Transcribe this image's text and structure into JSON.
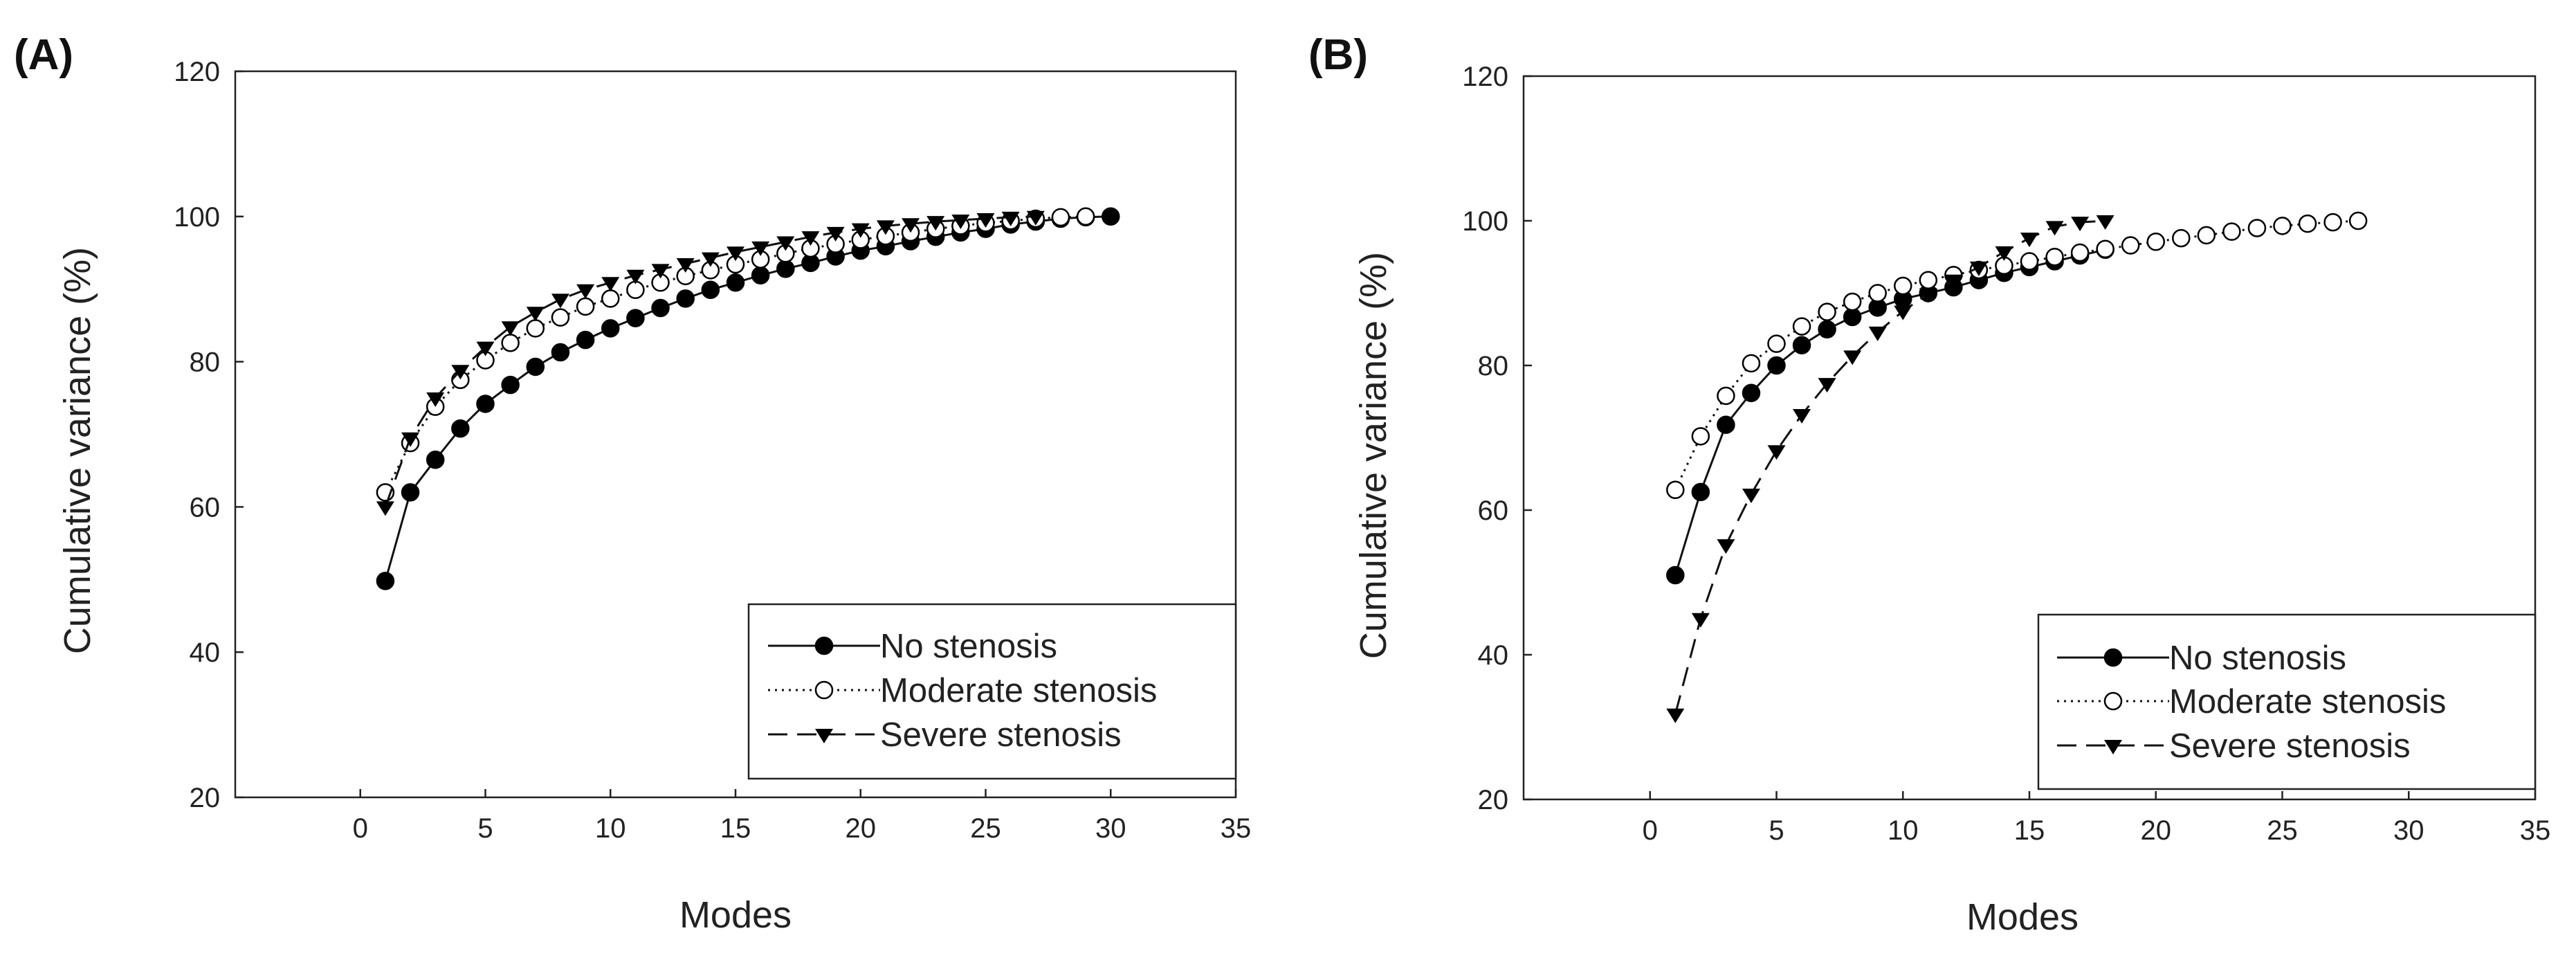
{
  "chart_data": [
    {
      "panel_label": "(A)",
      "type": "line",
      "xlabel": "Modes",
      "ylabel": "Cumulative variance (%)",
      "xlim": [
        -5,
        35
      ],
      "ylim": [
        20,
        120
      ],
      "xticks": [
        0,
        5,
        10,
        15,
        20,
        25,
        30,
        35
      ],
      "yticks": [
        20,
        40,
        60,
        80,
        100,
        120
      ],
      "legend_position": "bottom-right",
      "series": [
        {
          "name": "No stenosis",
          "marker": "filled-circle",
          "line": "solid",
          "x": [
            1,
            2,
            3,
            4,
            5,
            6,
            7,
            8,
            9,
            10,
            11,
            12,
            13,
            14,
            15,
            16,
            17,
            18,
            19,
            20,
            21,
            22,
            23,
            24,
            25,
            26,
            27,
            28,
            29,
            30
          ],
          "y": [
            49.8,
            62.0,
            66.5,
            70.8,
            74.2,
            76.8,
            79.3,
            81.3,
            83.0,
            84.6,
            86.0,
            87.4,
            88.7,
            89.9,
            90.9,
            91.9,
            92.8,
            93.6,
            94.5,
            95.3,
            95.9,
            96.6,
            97.2,
            97.8,
            98.3,
            98.9,
            99.3,
            99.7,
            99.9,
            100.0
          ]
        },
        {
          "name": "Moderate stenosis",
          "marker": "open-circle",
          "line": "dotted",
          "x": [
            1,
            2,
            3,
            4,
            5,
            6,
            7,
            8,
            9,
            10,
            11,
            12,
            13,
            14,
            15,
            16,
            17,
            18,
            19,
            20,
            21,
            22,
            23,
            24,
            25,
            26,
            27,
            28,
            29
          ],
          "y": [
            62.0,
            68.8,
            73.8,
            77.5,
            80.2,
            82.6,
            84.6,
            86.1,
            87.6,
            88.7,
            89.9,
            90.9,
            91.8,
            92.6,
            93.4,
            94.1,
            94.9,
            95.6,
            96.2,
            96.8,
            97.3,
            97.8,
            98.3,
            98.7,
            99.1,
            99.4,
            99.7,
            99.9,
            100.0
          ]
        },
        {
          "name": "Severe stenosis",
          "marker": "filled-triangle-down",
          "line": "dashed",
          "x": [
            1,
            2,
            3,
            4,
            5,
            6,
            7,
            8,
            9,
            10,
            11,
            12,
            13,
            14,
            15,
            16,
            17,
            18,
            19,
            20,
            21,
            22,
            23,
            24,
            25,
            26,
            27
          ],
          "y": [
            60.0,
            69.5,
            75.0,
            78.8,
            82.0,
            84.8,
            86.8,
            88.6,
            89.9,
            90.9,
            91.9,
            92.7,
            93.5,
            94.3,
            95.1,
            95.8,
            96.5,
            97.2,
            97.8,
            98.3,
            98.7,
            99.0,
            99.3,
            99.5,
            99.7,
            99.9,
            100.0
          ]
        }
      ]
    },
    {
      "panel_label": "(B)",
      "type": "line",
      "xlabel": "Modes",
      "ylabel": "Cumulative variance (%)",
      "xlim": [
        -5,
        35
      ],
      "ylim": [
        20,
        120
      ],
      "xticks": [
        0,
        5,
        10,
        15,
        20,
        25,
        30,
        35
      ],
      "yticks": [
        20,
        40,
        60,
        80,
        100,
        120
      ],
      "legend_position": "bottom-right",
      "series": [
        {
          "name": "No stenosis",
          "marker": "filled-circle",
          "line": "solid",
          "x": [
            1,
            2,
            3,
            4,
            5,
            6,
            7,
            8,
            9,
            10,
            11,
            12,
            13,
            14,
            15,
            16,
            17,
            18
          ],
          "y": [
            51.0,
            62.5,
            71.8,
            76.2,
            80.0,
            82.8,
            85.0,
            86.7,
            88.0,
            89.2,
            90.0,
            90.8,
            91.8,
            92.8,
            93.6,
            94.4,
            95.2,
            96.0
          ]
        },
        {
          "name": "Moderate stenosis",
          "marker": "open-circle",
          "line": "dotted",
          "x": [
            1,
            2,
            3,
            4,
            5,
            6,
            7,
            8,
            9,
            10,
            11,
            12,
            13,
            14,
            15,
            16,
            17,
            18,
            19,
            20,
            21,
            22,
            23,
            24,
            25,
            26,
            27,
            28
          ],
          "y": [
            62.8,
            70.2,
            75.8,
            80.3,
            83.0,
            85.4,
            87.4,
            88.8,
            90.0,
            91.0,
            91.8,
            92.5,
            93.2,
            93.8,
            94.4,
            95.0,
            95.6,
            96.1,
            96.6,
            97.1,
            97.6,
            98.0,
            98.5,
            99.0,
            99.3,
            99.6,
            99.8,
            100.0
          ]
        },
        {
          "name": "Severe stenosis",
          "marker": "filled-triangle-down",
          "line": "dashed",
          "x": [
            1,
            2,
            3,
            4,
            5,
            6,
            7,
            8,
            9,
            10,
            11,
            12,
            13,
            14,
            15,
            16,
            17,
            18
          ],
          "y": [
            31.8,
            45.0,
            55.2,
            62.2,
            68.2,
            73.2,
            77.5,
            81.3,
            84.6,
            87.5,
            89.9,
            91.8,
            93.6,
            95.7,
            97.6,
            99.2,
            99.8,
            100.0
          ]
        }
      ]
    }
  ]
}
